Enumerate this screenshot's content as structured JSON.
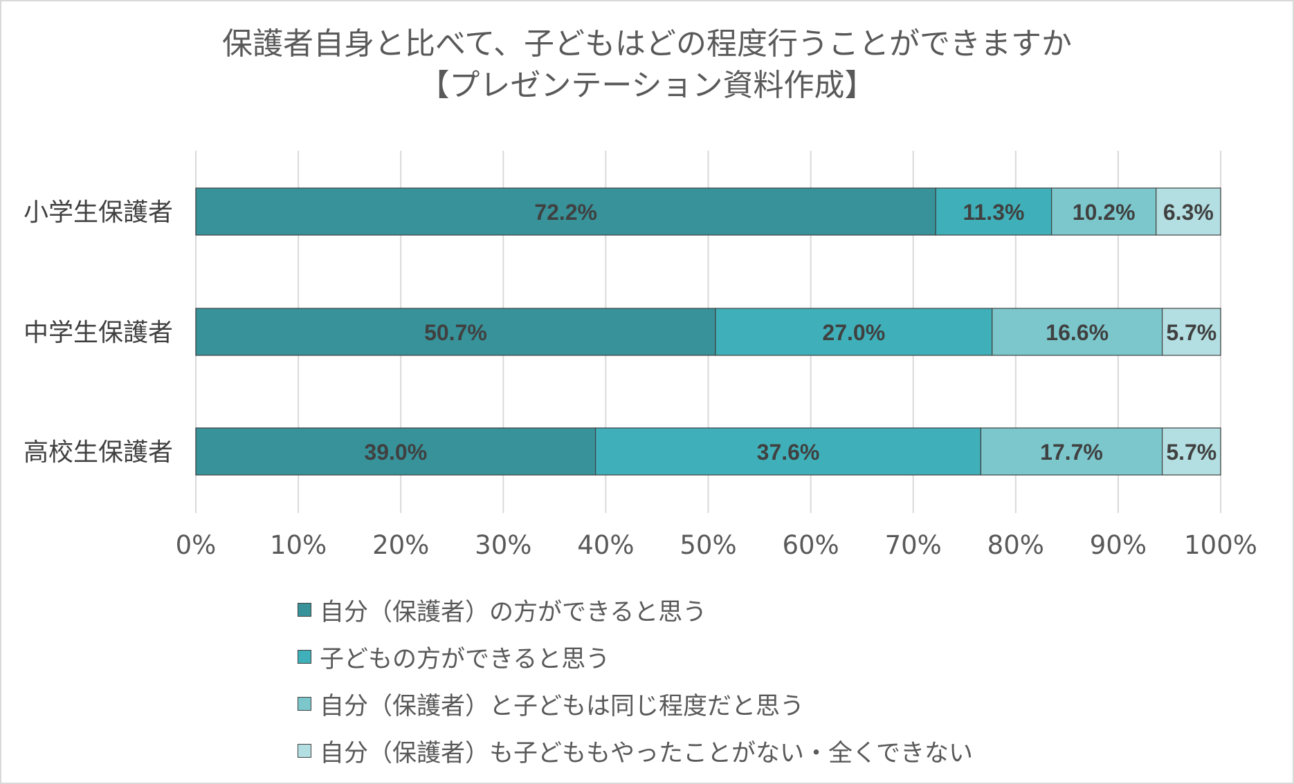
{
  "chart_data": {
    "type": "bar",
    "orientation": "horizontal",
    "stacked": true,
    "title_line1": "保護者自身と比べて、子どもはどの程度行うことができますか",
    "title_line2": "【プレゼンテーション資料作成】",
    "categories": [
      "小学生保護者",
      "中学生保護者",
      "高校生保護者"
    ],
    "series": [
      {
        "name": "自分（保護者）の方ができると思う",
        "color": "#37929a",
        "values": [
          72.2,
          50.7,
          39.0
        ]
      },
      {
        "name": "子どもの方ができると思う",
        "color": "#3fb0b9",
        "values": [
          11.3,
          27.0,
          37.6
        ]
      },
      {
        "name": "自分（保護者）と子どもは同じ程度だと思う",
        "color": "#7bc7cc",
        "values": [
          10.2,
          16.6,
          17.7
        ]
      },
      {
        "name": "自分（保護者）も子どももやったことがない・全くできない",
        "color": "#b3dfe2",
        "values": [
          6.3,
          5.7,
          5.7
        ]
      }
    ],
    "data_labels": [
      [
        "72.2%",
        "11.3%",
        "10.2%",
        "6.3%"
      ],
      [
        "50.7%",
        "27.0%",
        "16.6%",
        "5.7%"
      ],
      [
        "39.0%",
        "37.6%",
        "17.7%",
        "5.7%"
      ]
    ],
    "xlim": [
      0,
      100
    ],
    "x_ticks": [
      "0%",
      "10%",
      "20%",
      "30%",
      "40%",
      "50%",
      "60%",
      "70%",
      "80%",
      "90%",
      "100%"
    ],
    "grid": true,
    "legend_position": "bottom"
  }
}
